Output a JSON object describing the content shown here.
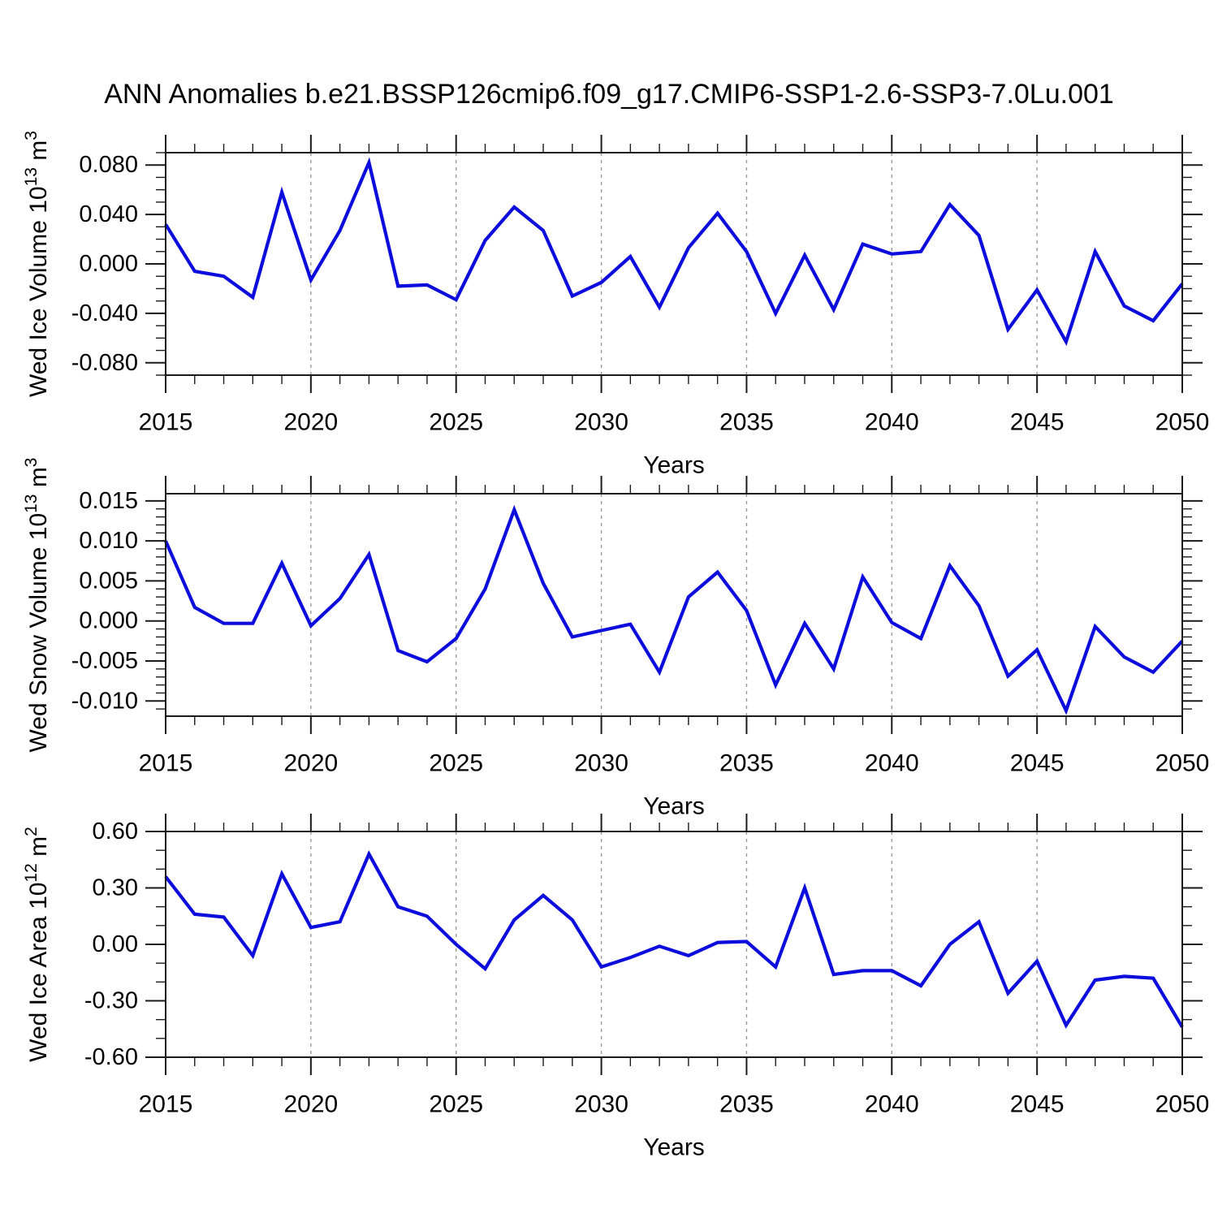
{
  "title": "ANN Anomalies b.e21.BSSP126cmip6.f09_g17.CMIP6-SSP1-2.6-SSP3-7.0Lu.001",
  "line_color": "#0c0cdc",
  "axis_color": "#1a1a1a",
  "grid_color": "#9a9a9a",
  "chart_data": [
    {
      "type": "line",
      "name": "wed-ice-volume",
      "ylabel_parts": [
        {
          "t": "Wed Ice Volume 10",
          "sup": false
        },
        {
          "t": "13",
          "sup": true
        },
        {
          "t": " m",
          "sup": false
        },
        {
          "t": "3",
          "sup": true
        }
      ],
      "xlabel": "Years",
      "x": [
        2015,
        2016,
        2017,
        2018,
        2019,
        2020,
        2021,
        2022,
        2023,
        2024,
        2025,
        2026,
        2027,
        2028,
        2029,
        2030,
        2031,
        2032,
        2033,
        2034,
        2035,
        2036,
        2037,
        2038,
        2039,
        2040,
        2041,
        2042,
        2043,
        2044,
        2045,
        2046,
        2047,
        2048,
        2049,
        2050
      ],
      "values": [
        0.032,
        -0.006,
        -0.01,
        -0.027,
        0.058,
        -0.013,
        0.027,
        0.082,
        -0.018,
        -0.017,
        -0.029,
        0.019,
        0.046,
        0.027,
        -0.026,
        -0.015,
        0.006,
        -0.035,
        0.013,
        0.041,
        0.01,
        -0.04,
        0.007,
        -0.037,
        0.016,
        0.008,
        0.01,
        0.048,
        0.023,
        -0.053,
        -0.021,
        -0.063,
        0.01,
        -0.034,
        -0.046,
        -0.016
      ],
      "ylim": [
        -0.09,
        0.09
      ],
      "yticks": [
        {
          "v": 0.08,
          "label": "0.080"
        },
        {
          "v": 0.04,
          "label": "0.040"
        },
        {
          "v": 0.0,
          "label": "0.000"
        },
        {
          "v": -0.04,
          "label": "-0.040"
        },
        {
          "v": -0.08,
          "label": "-0.080"
        }
      ],
      "yminor": 0.01,
      "xlim": [
        2015,
        2050
      ],
      "xticks": [
        {
          "v": 2015,
          "label": "2015"
        },
        {
          "v": 2020,
          "label": "2020"
        },
        {
          "v": 2025,
          "label": "2025"
        },
        {
          "v": 2030,
          "label": "2030"
        },
        {
          "v": 2035,
          "label": "2035"
        },
        {
          "v": 2040,
          "label": "2040"
        },
        {
          "v": 2045,
          "label": "2045"
        },
        {
          "v": 2050,
          "label": "2050"
        }
      ],
      "xminor": 1,
      "grid_years": [
        2020,
        2025,
        2030,
        2035,
        2040,
        2045
      ]
    },
    {
      "type": "line",
      "name": "wed-snow-volume",
      "ylabel_parts": [
        {
          "t": "Wed Snow Volume 10",
          "sup": false
        },
        {
          "t": "13",
          "sup": true
        },
        {
          "t": " m",
          "sup": false
        },
        {
          "t": "3",
          "sup": true
        }
      ],
      "xlabel": "Years",
      "x": [
        2015,
        2016,
        2017,
        2018,
        2019,
        2020,
        2021,
        2022,
        2023,
        2024,
        2025,
        2026,
        2027,
        2028,
        2029,
        2030,
        2031,
        2032,
        2033,
        2034,
        2035,
        2036,
        2037,
        2038,
        2039,
        2040,
        2041,
        2042,
        2043,
        2044,
        2045,
        2046,
        2047,
        2048,
        2049,
        2050
      ],
      "values": [
        0.01,
        0.0017,
        -0.0003,
        -0.0003,
        0.0072,
        -0.0006,
        0.0028,
        0.0083,
        -0.0037,
        -0.0051,
        -0.0022,
        0.004,
        0.0139,
        0.0047,
        -0.002,
        -0.0012,
        -0.0004,
        -0.0064,
        0.003,
        0.0061,
        0.0013,
        -0.008,
        -0.0003,
        -0.006,
        0.0055,
        -0.0002,
        -0.0022,
        0.0069,
        0.0019,
        -0.0069,
        -0.0036,
        -0.0112,
        -0.0007,
        -0.0045,
        -0.0064,
        -0.0025
      ],
      "ylim": [
        -0.0119,
        0.0159
      ],
      "yticks": [
        {
          "v": 0.015,
          "label": "0.015"
        },
        {
          "v": 0.01,
          "label": "0.010"
        },
        {
          "v": 0.005,
          "label": "0.005"
        },
        {
          "v": 0.0,
          "label": "0.000"
        },
        {
          "v": -0.005,
          "label": "-0.005"
        },
        {
          "v": -0.01,
          "label": "-0.010"
        }
      ],
      "yminor": 0.001,
      "xlim": [
        2015,
        2050
      ],
      "xticks": [
        {
          "v": 2015,
          "label": "2015"
        },
        {
          "v": 2020,
          "label": "2020"
        },
        {
          "v": 2025,
          "label": "2025"
        },
        {
          "v": 2030,
          "label": "2030"
        },
        {
          "v": 2035,
          "label": "2035"
        },
        {
          "v": 2040,
          "label": "2040"
        },
        {
          "v": 2045,
          "label": "2045"
        },
        {
          "v": 2050,
          "label": "2050"
        }
      ],
      "xminor": 1,
      "grid_years": [
        2020,
        2025,
        2030,
        2035,
        2040,
        2045
      ]
    },
    {
      "type": "line",
      "name": "wed-ice-area",
      "ylabel_parts": [
        {
          "t": "Wed Ice Area 10",
          "sup": false
        },
        {
          "t": "12",
          "sup": true
        },
        {
          "t": " m",
          "sup": false
        },
        {
          "t": "2",
          "sup": true
        }
      ],
      "xlabel": "Years",
      "x": [
        2015,
        2016,
        2017,
        2018,
        2019,
        2020,
        2021,
        2022,
        2023,
        2024,
        2025,
        2026,
        2027,
        2028,
        2029,
        2030,
        2031,
        2032,
        2033,
        2034,
        2035,
        2036,
        2037,
        2038,
        2039,
        2040,
        2041,
        2042,
        2043,
        2044,
        2045,
        2046,
        2047,
        2048,
        2049,
        2050
      ],
      "values": [
        0.36,
        0.16,
        0.145,
        -0.06,
        0.375,
        0.09,
        0.12,
        0.48,
        0.2,
        0.15,
        0.0,
        -0.13,
        0.13,
        0.26,
        0.13,
        -0.12,
        -0.07,
        -0.01,
        -0.06,
        0.01,
        0.015,
        -0.12,
        0.3,
        -0.16,
        -0.14,
        -0.14,
        -0.22,
        0.0,
        0.12,
        -0.26,
        -0.09,
        -0.43,
        -0.19,
        -0.17,
        -0.18,
        -0.44
      ],
      "ylim": [
        -0.6,
        0.6
      ],
      "yticks": [
        {
          "v": 0.6,
          "label": "0.60"
        },
        {
          "v": 0.3,
          "label": "0.30"
        },
        {
          "v": 0.0,
          "label": "0.00"
        },
        {
          "v": -0.3,
          "label": "-0.30"
        },
        {
          "v": -0.6,
          "label": "-0.60"
        }
      ],
      "yminor": 0.1,
      "xlim": [
        2015,
        2050
      ],
      "xticks": [
        {
          "v": 2015,
          "label": "2015"
        },
        {
          "v": 2020,
          "label": "2020"
        },
        {
          "v": 2025,
          "label": "2025"
        },
        {
          "v": 2030,
          "label": "2030"
        },
        {
          "v": 2035,
          "label": "2035"
        },
        {
          "v": 2040,
          "label": "2040"
        },
        {
          "v": 2045,
          "label": "2045"
        },
        {
          "v": 2050,
          "label": "2050"
        }
      ],
      "xminor": 1,
      "grid_years": [
        2020,
        2025,
        2030,
        2035,
        2040,
        2045
      ]
    }
  ]
}
